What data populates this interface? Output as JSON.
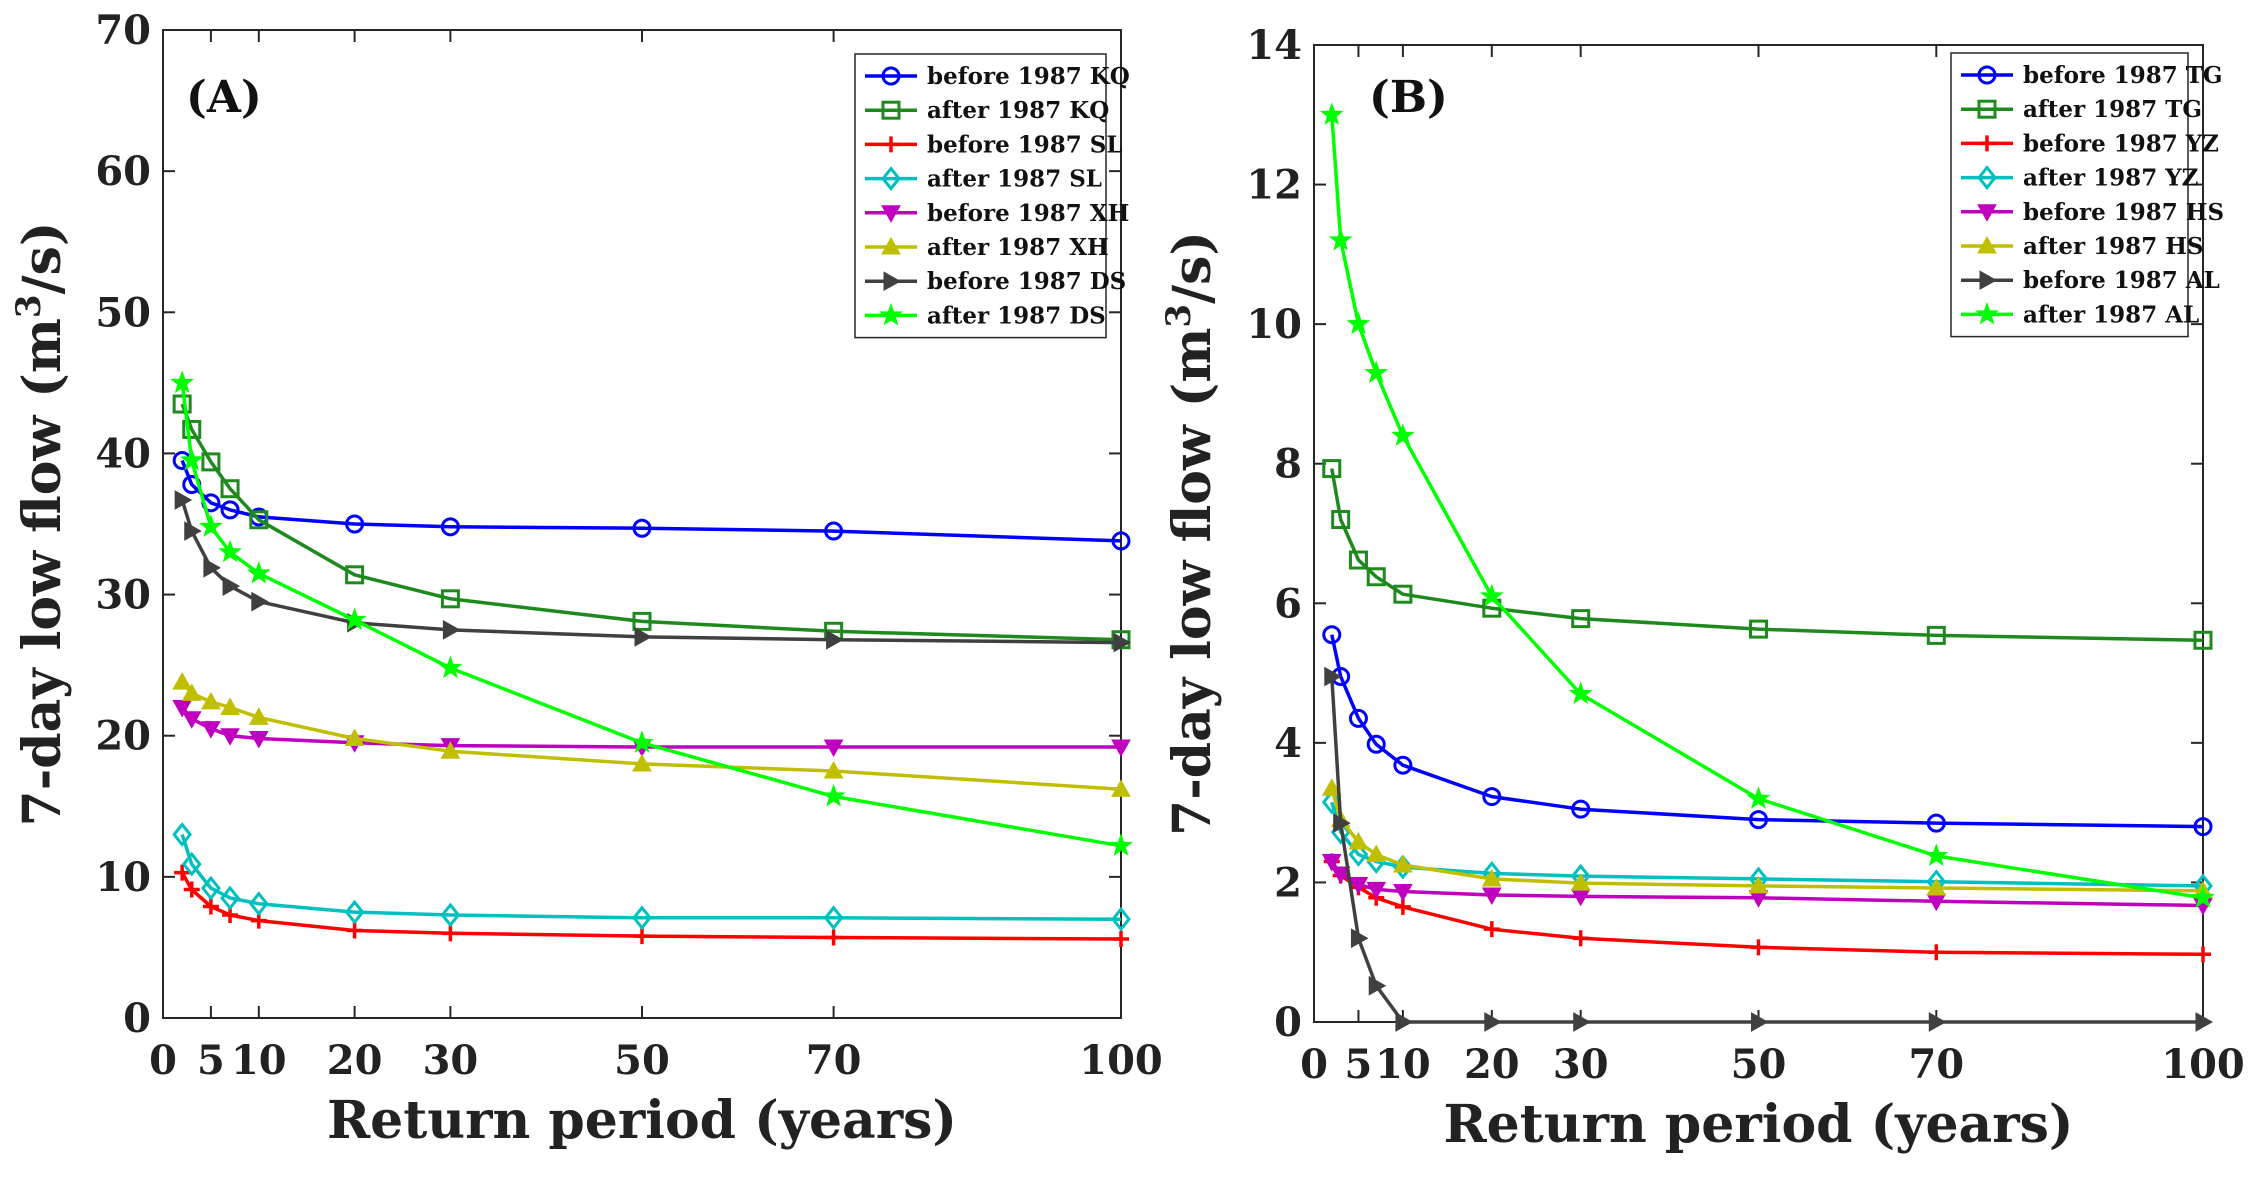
{
  "chart_data": [
    {
      "type": "line",
      "panel_label": "(A)",
      "xlabel": "Return period (years)",
      "ylabel_main": "7-day low flow (m",
      "ylabel_sup": "3",
      "ylabel_end": "/s)",
      "xlim": [
        0,
        100
      ],
      "ylim": [
        0,
        70
      ],
      "xticks": [
        0,
        5,
        10,
        20,
        30,
        50,
        70,
        100
      ],
      "xtick_labels": [
        "0",
        "5",
        "10",
        "20",
        "30",
        "50",
        "70",
        "100"
      ],
      "yticks": [
        0,
        10,
        20,
        30,
        40,
        50,
        60,
        70
      ],
      "ytick_labels": [
        "0",
        "10",
        "20",
        "30",
        "40",
        "50",
        "60",
        "70"
      ],
      "grid": false,
      "legend_position": "top-right",
      "x": [
        2,
        3,
        5,
        7,
        10,
        20,
        30,
        50,
        70,
        100
      ],
      "series": [
        {
          "name": "before 1987 KQ",
          "color": "#0000ff",
          "marker": "circle",
          "values": [
            39.5,
            37.8,
            36.5,
            36.0,
            35.5,
            35.0,
            34.8,
            34.7,
            34.5,
            33.8
          ]
        },
        {
          "name": "after 1987 KQ",
          "color": "#1e8a1e",
          "marker": "square",
          "values": [
            43.5,
            41.7,
            39.4,
            37.5,
            35.3,
            31.4,
            29.7,
            28.1,
            27.4,
            26.8
          ]
        },
        {
          "name": "before 1987 SL",
          "color": "#ff0000",
          "marker": "plus",
          "values": [
            10.3,
            9.1,
            7.9,
            7.3,
            6.9,
            6.2,
            6.0,
            5.8,
            5.7,
            5.6
          ]
        },
        {
          "name": "after 1987 SL",
          "color": "#00bfbf",
          "marker": "diamond",
          "values": [
            13.0,
            10.9,
            9.2,
            8.5,
            8.1,
            7.5,
            7.3,
            7.1,
            7.1,
            7.0
          ]
        },
        {
          "name": "before 1987 XH",
          "color": "#bf00bf",
          "marker": "triangle-down",
          "values": [
            22.0,
            21.2,
            20.5,
            20.0,
            19.8,
            19.5,
            19.3,
            19.2,
            19.2,
            19.2
          ]
        },
        {
          "name": "after 1987 XH",
          "color": "#bfbf00",
          "marker": "triangle-up",
          "values": [
            23.8,
            23.0,
            22.4,
            22.0,
            21.3,
            19.8,
            18.9,
            18.0,
            17.5,
            16.2
          ]
        },
        {
          "name": "before 1987 DS",
          "color": "#404040",
          "marker": "triangle-right",
          "values": [
            36.7,
            34.5,
            31.9,
            30.6,
            29.5,
            28.0,
            27.5,
            27.0,
            26.8,
            26.6
          ]
        },
        {
          "name": "after 1987 DS",
          "color": "#00ff00",
          "marker": "star",
          "values": [
            45.0,
            39.5,
            34.8,
            33.0,
            31.5,
            28.2,
            24.8,
            19.5,
            15.7,
            12.2
          ]
        }
      ]
    },
    {
      "type": "line",
      "panel_label": "(B)",
      "xlabel": "Return period (years)",
      "ylabel_main": "7-day low flow (m",
      "ylabel_sup": "3",
      "ylabel_end": "/s)",
      "xlim": [
        0,
        100
      ],
      "ylim": [
        0,
        14
      ],
      "xticks": [
        0,
        5,
        10,
        20,
        30,
        50,
        70,
        100
      ],
      "xtick_labels": [
        "0",
        "5",
        "10",
        "20",
        "30",
        "50",
        "70",
        "100"
      ],
      "yticks": [
        0,
        2,
        4,
        6,
        8,
        10,
        12,
        14
      ],
      "ytick_labels": [
        "0",
        "2",
        "4",
        "6",
        "8",
        "10",
        "12",
        "14"
      ],
      "grid": false,
      "legend_position": "top-right",
      "x": [
        2,
        3,
        5,
        7,
        10,
        20,
        30,
        50,
        70,
        100
      ],
      "series": [
        {
          "name": "before 1987 TG",
          "color": "#0000ff",
          "marker": "circle",
          "values": [
            5.55,
            4.95,
            4.35,
            3.98,
            3.68,
            3.23,
            3.05,
            2.9,
            2.85,
            2.8
          ]
        },
        {
          "name": "after 1987 TG",
          "color": "#1e8a1e",
          "marker": "square",
          "values": [
            7.93,
            7.2,
            6.62,
            6.38,
            6.13,
            5.93,
            5.78,
            5.63,
            5.54,
            5.47
          ]
        },
        {
          "name": "before 1987 YZ",
          "color": "#ff0000",
          "marker": "plus",
          "values": [
            2.3,
            2.1,
            1.93,
            1.78,
            1.65,
            1.33,
            1.2,
            1.07,
            1.0,
            0.97
          ]
        },
        {
          "name": "after 1987 YZ",
          "color": "#00bfbf",
          "marker": "diamond",
          "values": [
            3.15,
            2.72,
            2.4,
            2.3,
            2.22,
            2.13,
            2.09,
            2.05,
            2.01,
            1.95
          ]
        },
        {
          "name": "before 1987 HS",
          "color": "#bf00bf",
          "marker": "triangle-down",
          "values": [
            2.3,
            2.12,
            1.97,
            1.9,
            1.87,
            1.82,
            1.8,
            1.78,
            1.73,
            1.67
          ]
        },
        {
          "name": "after 1987 HS",
          "color": "#bfbf00",
          "marker": "triangle-up",
          "values": [
            3.35,
            2.9,
            2.58,
            2.4,
            2.25,
            2.05,
            1.99,
            1.95,
            1.92,
            1.88
          ]
        },
        {
          "name": "before 1987 AL",
          "color": "#404040",
          "marker": "triangle-right",
          "values": [
            4.95,
            2.85,
            1.2,
            0.52,
            0.0,
            0.0,
            0.0,
            0.0,
            0.0,
            0.0
          ]
        },
        {
          "name": "after 1987 AL",
          "color": "#00ff00",
          "marker": "star",
          "values": [
            13.0,
            11.2,
            10.0,
            9.3,
            8.4,
            6.1,
            4.7,
            3.2,
            2.38,
            1.78
          ]
        }
      ]
    }
  ]
}
